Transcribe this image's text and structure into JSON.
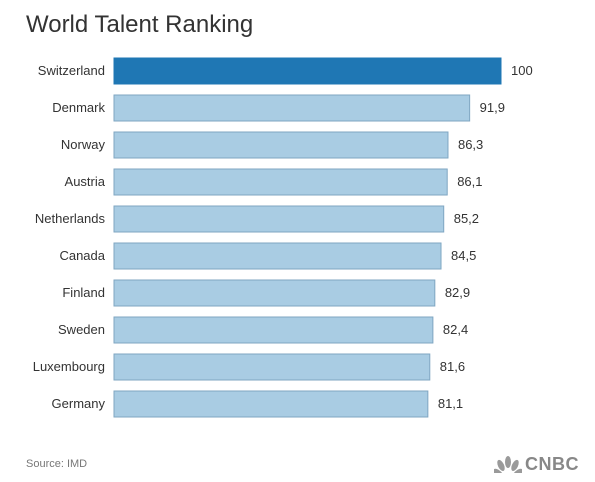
{
  "chart_data": {
    "type": "bar",
    "orientation": "horizontal",
    "title": "World Talent Ranking",
    "categories": [
      "Switzerland",
      "Denmark",
      "Norway",
      "Austria",
      "Netherlands",
      "Canada",
      "Finland",
      "Sweden",
      "Luxembourg",
      "Germany"
    ],
    "values": [
      100,
      91.9,
      86.3,
      86.1,
      85.2,
      84.5,
      82.9,
      82.4,
      81.6,
      81.1
    ],
    "value_labels": [
      "100",
      "91,9",
      "86,3",
      "86,1",
      "85,2",
      "84,5",
      "82,9",
      "82,4",
      "81,6",
      "81,1"
    ],
    "xlim": [
      0,
      100
    ],
    "grid": false,
    "colors": {
      "highlight": "#1f77b4",
      "bar": "#a9cce3",
      "bar_stroke": "#7fa6c2"
    }
  },
  "footer": {
    "source": "Source: IMD",
    "logo_icon": "cnbc-peacock-icon",
    "logo_text": "CNBC"
  }
}
